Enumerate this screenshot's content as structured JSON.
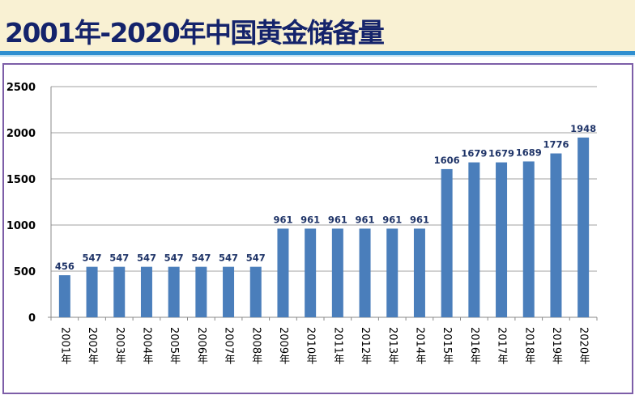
{
  "title": "2001年-2020年中国黄金储备量",
  "colors": {
    "bar": "#4a7ebb",
    "label": "#1f3468",
    "title": "#14236b",
    "grid": "#a0a0a0"
  },
  "chart_data": {
    "type": "bar",
    "title": "",
    "xlabel": "",
    "ylabel": "",
    "ylim": [
      0,
      2500
    ],
    "yticks": [
      0,
      500,
      1000,
      1500,
      2000,
      2500
    ],
    "grid": true,
    "data_labels": true,
    "categories": [
      "2001年",
      "2002年",
      "2003年",
      "2004年",
      "2005年",
      "2006年",
      "2007年",
      "2008年",
      "2009年",
      "2010年",
      "2011年",
      "2012年",
      "2013年",
      "2014年",
      "2015年",
      "2016年",
      "2017年",
      "2018年",
      "2019年",
      "2020年"
    ],
    "values": [
      456,
      547,
      547,
      547,
      547,
      547,
      547,
      547,
      961,
      961,
      961,
      961,
      961,
      961,
      1606,
      1679,
      1679,
      1689,
      1776,
      1948
    ]
  }
}
